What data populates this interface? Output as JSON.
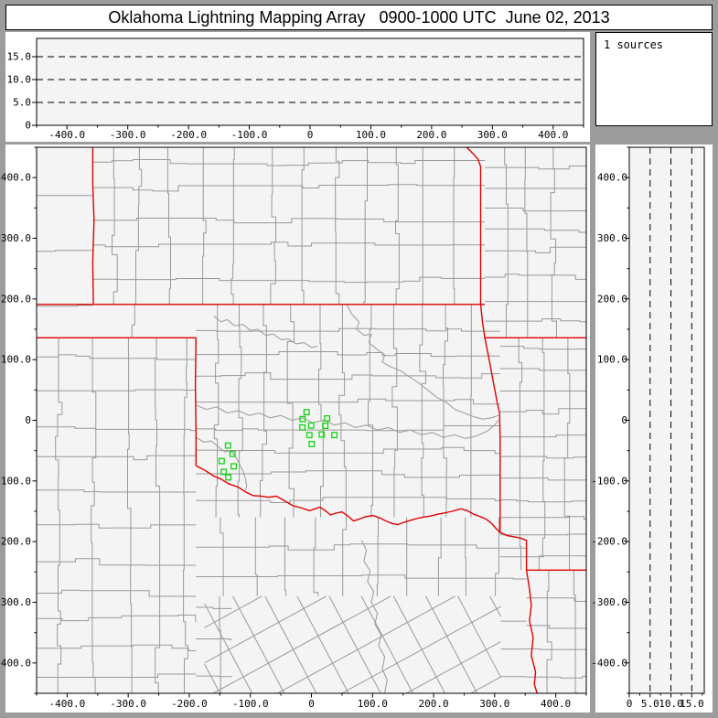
{
  "title": "Oklahoma Lightning Mapping Array   0900-1000 UTC  June 02, 2013",
  "sources_panel": {
    "label": "1 sources"
  },
  "colors": {
    "frame_gray": "#9c9c9c",
    "panel_white": "#ffffff",
    "plot_bg": "#f4f4f4",
    "county_line": "#999999",
    "river_line": "#a0a0a0",
    "state_border": "#e00000",
    "station_green": "#11d411",
    "axis_black": "#000000"
  },
  "axes": {
    "map": {
      "x_ticks": [
        {
          "v": -400,
          "label": "-400.0"
        },
        {
          "v": -300,
          "label": "-300.0"
        },
        {
          "v": -200,
          "label": "-200.0"
        },
        {
          "v": -100,
          "label": "-100.0"
        },
        {
          "v": 0,
          "label": "0"
        },
        {
          "v": 100,
          "label": "100.0"
        },
        {
          "v": 200,
          "label": "200.0"
        },
        {
          "v": 300,
          "label": "300.0"
        },
        {
          "v": 400,
          "label": "400.0"
        }
      ],
      "y_ticks": [
        {
          "v": 400,
          "label": "400.0"
        },
        {
          "v": 300,
          "label": "300.0"
        },
        {
          "v": 200,
          "label": "200.0"
        },
        {
          "v": 100,
          "label": "100.0"
        },
        {
          "v": 0,
          "label": "0"
        },
        {
          "v": -100,
          "label": "-100.0"
        },
        {
          "v": -200,
          "label": "-200.0"
        },
        {
          "v": -300,
          "label": "-300.0"
        },
        {
          "v": -400,
          "label": "-400.0"
        }
      ],
      "minor_step": 50
    },
    "top_alt": {
      "ticks": [
        {
          "v": 15,
          "label": "15.0"
        },
        {
          "v": 10,
          "label": "10.0"
        },
        {
          "v": 5,
          "label": "5.0"
        },
        {
          "v": 0,
          "label": "0"
        }
      ],
      "max": 19
    },
    "right_alt": {
      "ticks": [
        {
          "v": 0,
          "label": "0"
        },
        {
          "v": 5,
          "label": "5.0"
        },
        {
          "v": 10,
          "label": "10.0"
        },
        {
          "v": 15,
          "label": "15.0"
        }
      ],
      "max": 18
    }
  },
  "chart_data": {
    "type": "scatter",
    "title": "Oklahoma Lightning Mapping Array 0900-1000 UTC June 02, 2013",
    "x_range_km": [
      -450,
      450
    ],
    "y_range_km": [
      -450,
      450
    ],
    "altitude_range_km": [
      0,
      19
    ],
    "altitude_dashed_gridlines_km": [
      5,
      10,
      15
    ],
    "source_count_text": "1 sources",
    "lma_stations_km": [
      [
        -7.9,
        13.3
      ],
      [
        -14.4,
        2.0
      ],
      [
        25.7,
        3.1
      ],
      [
        -0.4,
        -8.7
      ],
      [
        -14.8,
        -11.8
      ],
      [
        22.7,
        -9.2
      ],
      [
        -3.4,
        -24.4
      ],
      [
        16.8,
        -23.4
      ],
      [
        37.6,
        -24.4
      ],
      [
        0.4,
        -39.2
      ],
      [
        -136.6,
        -41.7
      ],
      [
        -129.2,
        -55.4
      ],
      [
        -147.0,
        -67.2
      ],
      [
        -127.2,
        -75.9
      ],
      [
        -143.6,
        -85.0
      ],
      [
        -136.1,
        -94.2
      ]
    ],
    "state_borders_km": [
      {
        "name": "colorado-kansas-west",
        "pts": [
          [
            -358,
            452
          ],
          [
            -358,
            390
          ],
          [
            -356,
            330
          ],
          [
            -358,
            260
          ],
          [
            -357,
            192
          ]
        ]
      },
      {
        "name": "oklahoma-north-37N",
        "pts": [
          [
            -450,
            191
          ],
          [
            284,
            191
          ]
        ]
      },
      {
        "name": "texas-panhandle-36p5N",
        "pts": [
          [
            -450,
            136
          ],
          [
            -189,
            136
          ]
        ]
      },
      {
        "name": "oklahoma-texas-100W",
        "pts": [
          [
            -189,
            136
          ],
          [
            -190,
            60
          ],
          [
            -189,
            -20
          ],
          [
            -189,
            -75
          ]
        ]
      },
      {
        "name": "red-river",
        "pts": [
          [
            -189,
            -75
          ],
          [
            -175,
            -82
          ],
          [
            -160,
            -92
          ],
          [
            -148,
            -97
          ],
          [
            -135,
            -105
          ],
          [
            -120,
            -110
          ],
          [
            -108,
            -118
          ],
          [
            -96,
            -124
          ],
          [
            -82,
            -125
          ],
          [
            -70,
            -127
          ],
          [
            -58,
            -125
          ],
          [
            -50,
            -129
          ],
          [
            -40,
            -135
          ],
          [
            -30,
            -141
          ],
          [
            -18,
            -144
          ],
          [
            -3,
            -149
          ],
          [
            6,
            -146
          ],
          [
            14,
            -143
          ],
          [
            24,
            -150
          ],
          [
            31,
            -156
          ],
          [
            40,
            -153
          ],
          [
            50,
            -151
          ],
          [
            60,
            -158
          ],
          [
            69,
            -166
          ],
          [
            78,
            -163
          ],
          [
            88,
            -159
          ],
          [
            101,
            -157
          ],
          [
            112,
            -161
          ],
          [
            122,
            -166
          ],
          [
            132,
            -170
          ],
          [
            141,
            -172
          ],
          [
            152,
            -168
          ],
          [
            162,
            -165
          ],
          [
            172,
            -162
          ],
          [
            182,
            -160
          ],
          [
            194,
            -158
          ],
          [
            206,
            -155
          ],
          [
            217,
            -153
          ],
          [
            230,
            -150
          ],
          [
            245,
            -146
          ],
          [
            255,
            -149
          ],
          [
            266,
            -155
          ],
          [
            277,
            -159
          ],
          [
            286,
            -163
          ],
          [
            295,
            -170
          ],
          [
            302,
            -178
          ],
          [
            309,
            -185
          ],
          [
            320,
            -190
          ],
          [
            332,
            -192
          ],
          [
            342,
            -194
          ],
          [
            352,
            -198
          ]
        ]
      },
      {
        "name": "missouri-kansas-east",
        "pts": [
          [
            252,
            452
          ],
          [
            259,
            445
          ],
          [
            266,
            438
          ],
          [
            273,
            430
          ],
          [
            277,
            418
          ],
          [
            277,
            300
          ],
          [
            277,
            191
          ]
        ]
      },
      {
        "name": "oklahoma-arkansas-east",
        "pts": [
          [
            277,
            191
          ],
          [
            280,
            162
          ],
          [
            284,
            136
          ],
          [
            291,
            100
          ],
          [
            298,
            62
          ],
          [
            304,
            30
          ],
          [
            308,
            12
          ],
          [
            309,
            -30
          ],
          [
            309,
            -110
          ],
          [
            309,
            -185
          ]
        ]
      },
      {
        "name": "missouri-arkansas-36p5N",
        "pts": [
          [
            284,
            136
          ],
          [
            450,
            136
          ]
        ]
      },
      {
        "name": "texas-louisiana-north",
        "pts": [
          [
            352,
            -198
          ],
          [
            352,
            -247
          ]
        ]
      },
      {
        "name": "arkansas-louisiana-33N",
        "pts": [
          [
            352,
            -247
          ],
          [
            450,
            -247
          ]
        ]
      },
      {
        "name": "texas-louisiana-south",
        "pts": [
          [
            352,
            -247
          ],
          [
            357,
            -278
          ],
          [
            360,
            -305
          ],
          [
            357,
            -330
          ],
          [
            363,
            -358
          ],
          [
            360,
            -388
          ],
          [
            367,
            -415
          ],
          [
            365,
            -435
          ],
          [
            370,
            -452
          ]
        ]
      }
    ],
    "rivers_km": [
      {
        "name": "cimarron",
        "pts": [
          [
            -160,
            172
          ],
          [
            -148,
            162
          ],
          [
            -138,
            166
          ],
          [
            -126,
            156
          ],
          [
            -112,
            158
          ],
          [
            -100,
            148
          ],
          [
            -88,
            150
          ],
          [
            -75,
            140
          ],
          [
            -62,
            142
          ],
          [
            -50,
            133
          ],
          [
            -38,
            134
          ],
          [
            -25,
            126
          ],
          [
            -12,
            128
          ],
          [
            0,
            120
          ],
          [
            10,
            122
          ]
        ]
      },
      {
        "name": "arkansas",
        "pts": [
          [
            58,
            191
          ],
          [
            66,
            175
          ],
          [
            78,
            162
          ],
          [
            74,
            150
          ],
          [
            86,
            140
          ],
          [
            98,
            142
          ],
          [
            94,
            128
          ],
          [
            106,
            118
          ],
          [
            120,
            108
          ],
          [
            116,
            96
          ],
          [
            130,
            88
          ],
          [
            145,
            82
          ],
          [
            160,
            72
          ],
          [
            175,
            62
          ],
          [
            190,
            50
          ],
          [
            205,
            38
          ],
          [
            220,
            30
          ],
          [
            235,
            18
          ],
          [
            250,
            12
          ],
          [
            265,
            6
          ],
          [
            280,
            2
          ],
          [
            295,
            4
          ],
          [
            306,
            8
          ]
        ]
      },
      {
        "name": "canadian",
        "pts": [
          [
            -189,
            25
          ],
          [
            -172,
            18
          ],
          [
            -155,
            22
          ],
          [
            -138,
            12
          ],
          [
            -120,
            16
          ],
          [
            -102,
            8
          ],
          [
            -85,
            12
          ],
          [
            -68,
            4
          ],
          [
            -50,
            8
          ],
          [
            -32,
            0
          ],
          [
            -15,
            4
          ],
          [
            2,
            -4
          ],
          [
            20,
            0
          ],
          [
            38,
            -8
          ],
          [
            55,
            -4
          ],
          [
            72,
            -12
          ],
          [
            90,
            -8
          ],
          [
            108,
            -16
          ],
          [
            126,
            -12
          ],
          [
            144,
            -20
          ],
          [
            162,
            -16
          ],
          [
            180,
            -24
          ],
          [
            198,
            -20
          ],
          [
            216,
            -28
          ],
          [
            234,
            -24
          ],
          [
            252,
            -30
          ],
          [
            270,
            -26
          ],
          [
            288,
            -18
          ],
          [
            300,
            -8
          ],
          [
            306,
            0
          ]
        ]
      },
      {
        "name": "north-fork-red",
        "pts": [
          [
            -189,
            -28
          ],
          [
            -176,
            -36
          ],
          [
            -164,
            -34
          ],
          [
            -152,
            -44
          ],
          [
            -142,
            -52
          ],
          [
            -133,
            -50
          ],
          [
            -124,
            -60
          ],
          [
            -118,
            -72
          ],
          [
            -112,
            -84
          ],
          [
            -108,
            -96
          ],
          [
            -106,
            -108
          ],
          [
            -108,
            -116
          ]
        ]
      },
      {
        "name": "brazos",
        "pts": [
          [
            82,
            -198
          ],
          [
            90,
            -214
          ],
          [
            86,
            -232
          ],
          [
            96,
            -248
          ],
          [
            92,
            -266
          ],
          [
            102,
            -282
          ],
          [
            98,
            -300
          ],
          [
            108,
            -318
          ],
          [
            104,
            -336
          ],
          [
            114,
            -354
          ],
          [
            110,
            -372
          ],
          [
            120,
            -390
          ],
          [
            116,
            -410
          ],
          [
            124,
            -428
          ],
          [
            120,
            -450
          ]
        ]
      }
    ],
    "county_patches": [
      {
        "region": "colorado-new-mexico",
        "x0": -450,
        "x1": -358,
        "y0": 136,
        "y1": 452,
        "cw": 95,
        "ch": 88
      },
      {
        "region": "kansas",
        "x0": -358,
        "x1": 284,
        "y0": 191,
        "y1": 452,
        "cw": 52,
        "ch": 50
      },
      {
        "region": "missouri",
        "x0": 284,
        "x1": 450,
        "y0": 136,
        "y1": 452,
        "cw": 40,
        "ch": 38
      },
      {
        "region": "oklahoma-panhandle",
        "x0": -358,
        "x1": -189,
        "y0": 136,
        "y1": 191,
        "cw": 85,
        "ch": 70
      },
      {
        "region": "texas-panhandle",
        "x0": -450,
        "x1": -189,
        "y0": -452,
        "y1": 136,
        "cw": 53,
        "ch": 51
      },
      {
        "region": "oklahoma",
        "x0": -189,
        "x1": 309,
        "y0": -160,
        "y1": 191,
        "cw": 43,
        "ch": 40
      },
      {
        "region": "arkansas",
        "x0": 309,
        "x1": 450,
        "y0": -247,
        "y1": 136,
        "cw": 37,
        "ch": 35
      },
      {
        "region": "north-texas",
        "x0": -189,
        "x1": 352,
        "y0": -290,
        "y1": -160,
        "cw": 48,
        "ch": 44
      },
      {
        "region": "central-texas-diagonal",
        "type": "diag",
        "x0": -175,
        "x1": 310,
        "y0": -452,
        "y1": -290,
        "families": [
          {
            "m": 0.55,
            "spacing": 58
          },
          {
            "m": -1.9,
            "spacing": 100
          }
        ]
      },
      {
        "region": "west-central-texas",
        "x0": -189,
        "x1": -130,
        "y0": -452,
        "y1": -290,
        "cw": 60,
        "ch": 55
      },
      {
        "region": "east-texas",
        "x0": 310,
        "x1": 352,
        "y0": -452,
        "y1": -290,
        "cw": 45,
        "ch": 48
      },
      {
        "region": "louisiana",
        "x0": 352,
        "x1": 450,
        "y0": -452,
        "y1": -247,
        "cw": 44,
        "ch": 42
      }
    ]
  }
}
